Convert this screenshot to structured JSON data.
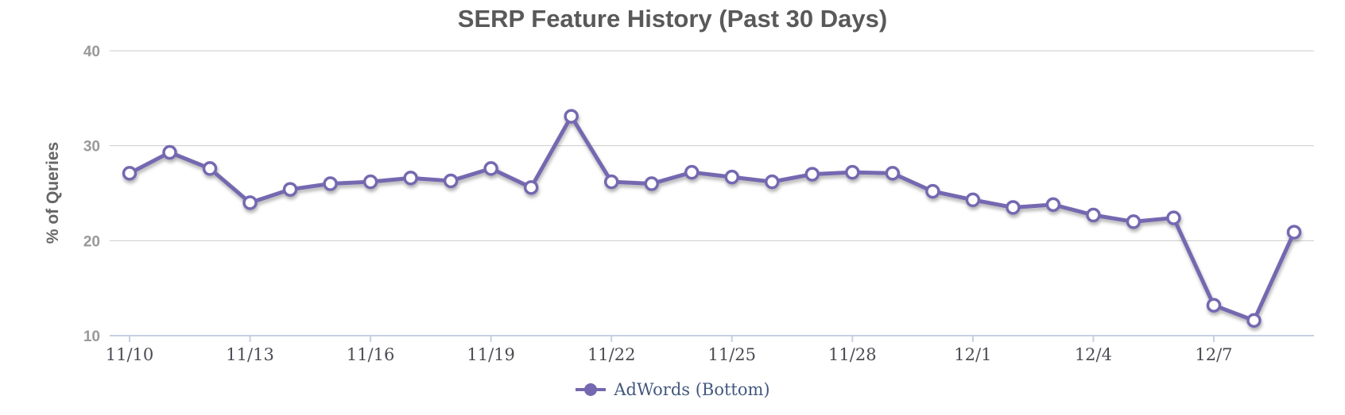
{
  "chart_data": {
    "type": "line",
    "title": "SERP Feature History (Past 30 Days)",
    "xlabel": "",
    "ylabel": "% of Queries",
    "ylim": [
      10,
      40
    ],
    "yticks": [
      10,
      20,
      30,
      40
    ],
    "grid": "horizontal",
    "legend_position": "bottom",
    "x": [
      "11/10",
      "11/11",
      "11/12",
      "11/13",
      "11/14",
      "11/15",
      "11/16",
      "11/17",
      "11/18",
      "11/19",
      "11/20",
      "11/21",
      "11/22",
      "11/23",
      "11/24",
      "11/25",
      "11/26",
      "11/27",
      "11/28",
      "11/29",
      "11/30",
      "12/1",
      "12/2",
      "12/3",
      "12/4",
      "12/5",
      "12/6",
      "12/7",
      "12/8",
      "12/9"
    ],
    "x_tick_labels": [
      "11/10",
      "11/13",
      "11/16",
      "11/19",
      "11/22",
      "11/25",
      "11/28",
      "12/1",
      "12/4",
      "12/7"
    ],
    "series": [
      {
        "name": "AdWords (Bottom)",
        "marker": "open-circle",
        "values": [
          27.1,
          29.3,
          27.6,
          24.0,
          25.4,
          26.0,
          26.2,
          26.6,
          26.3,
          27.6,
          25.6,
          33.1,
          26.2,
          26.0,
          27.2,
          26.7,
          26.2,
          27.0,
          27.2,
          27.1,
          25.2,
          24.3,
          23.5,
          23.8,
          22.7,
          22.0,
          22.4,
          13.2,
          11.6,
          20.9
        ]
      }
    ],
    "colors": {
      "line": "#7568b0",
      "marker_fill": "#ffffff",
      "legend_text": "#44587e",
      "gridline": "#cccccc",
      "axis_line": "#c6d0e2",
      "x_tick_text": "#4c4c54",
      "y_tick_text": "#999999",
      "title_text": "#595959",
      "axis_title_text": "#666666"
    }
  }
}
